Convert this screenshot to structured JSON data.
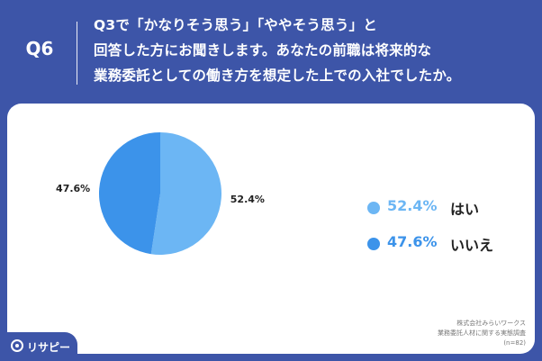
{
  "header": {
    "question_number": "Q6",
    "question_lines": [
      "Q3で「かなりそう思う」「ややそう思う」と",
      "回答した方にお聞きします。あなたの前職は将来的な",
      "業務委託としての働き方を想定した上での入社でしたか。"
    ]
  },
  "chart_data": {
    "type": "pie",
    "slices": [
      {
        "label": "はい",
        "value": 52.4,
        "display": "52.4%",
        "color": "#6cb6f4"
      },
      {
        "label": "いいえ",
        "value": 47.6,
        "display": "47.6%",
        "color": "#3c93ea"
      }
    ],
    "start_angle_deg": 0,
    "direction": "clockwise",
    "legend_position": "right"
  },
  "source": {
    "line1": "株式会社みらいワークス",
    "line2": "業務委託人材に関する実態調査",
    "line3": "(n=82)"
  },
  "logo": {
    "text": "リサピー",
    "icon": "location-pin-icon"
  }
}
